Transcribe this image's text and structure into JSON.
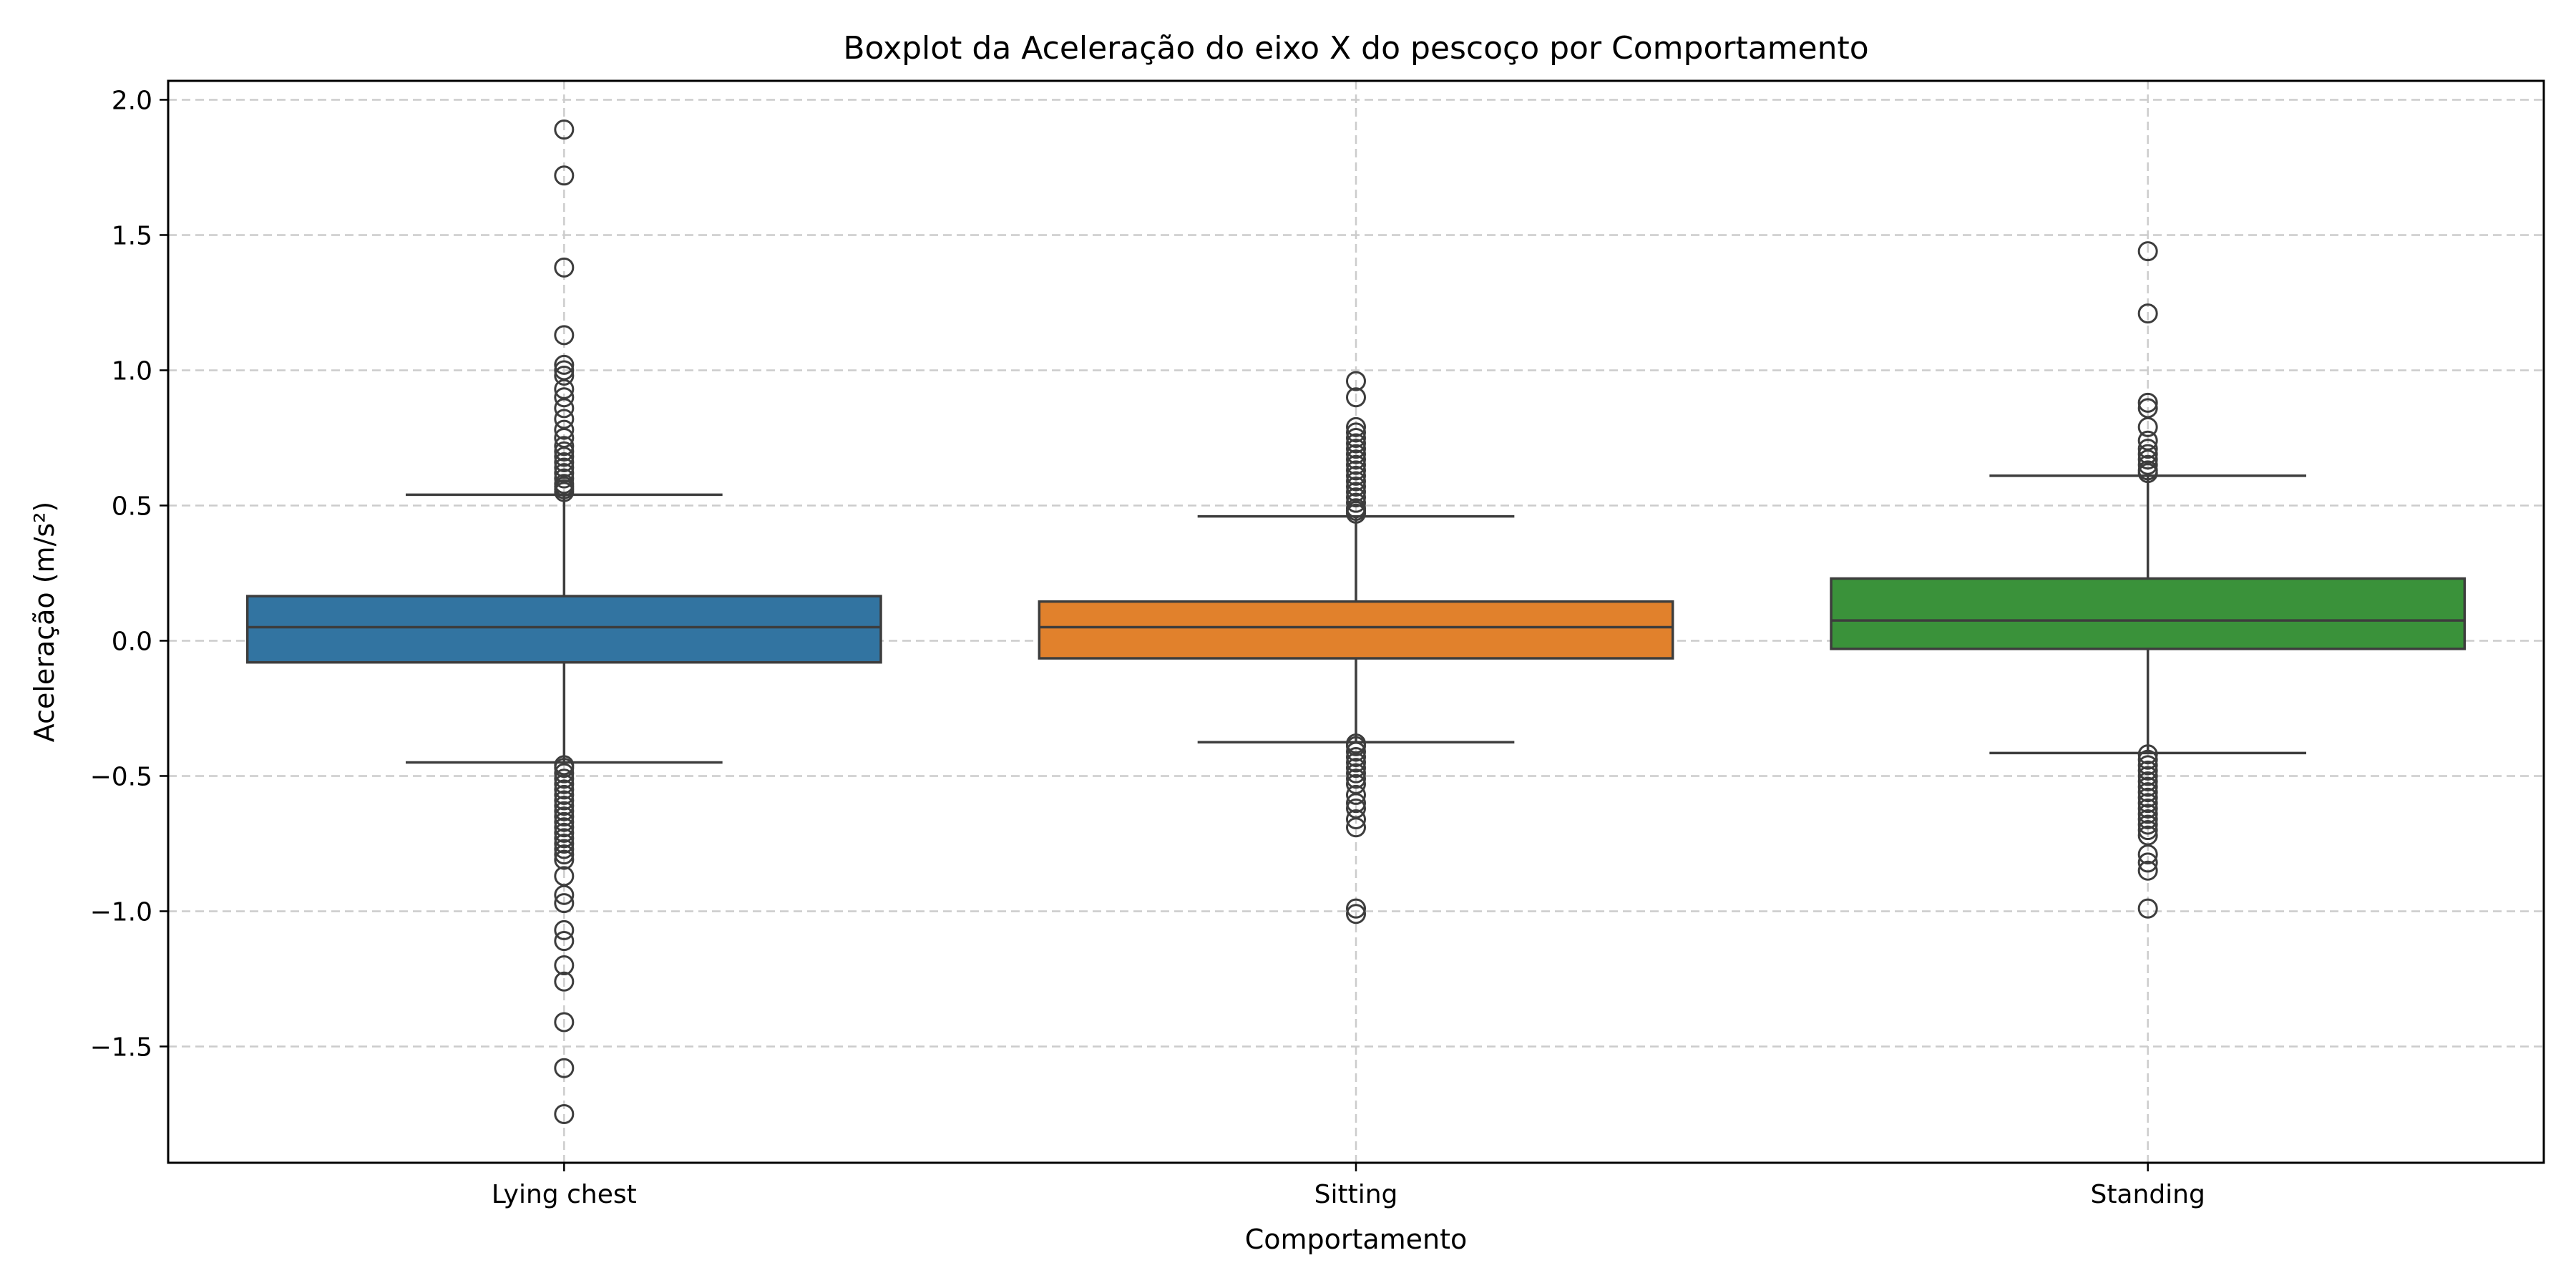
{
  "chart_data": {
    "type": "boxplot",
    "title": "Boxplot da Aceleração do eixo X do pescoço por Comportamento",
    "xlabel": "Comportamento",
    "ylabel": "Aceleração (m/s²)",
    "ylim": [
      -1.93,
      2.07
    ],
    "yticks": [
      -1.5,
      -1.0,
      -0.5,
      0.0,
      0.5,
      1.0,
      1.5,
      2.0
    ],
    "ytick_labels": [
      "−1.5",
      "−1.0",
      "−0.5",
      "0.0",
      "0.5",
      "1.0",
      "1.5",
      "2.0"
    ],
    "grid": true,
    "categories": [
      "Lying chest",
      "Sitting",
      "Standing"
    ],
    "series": [
      {
        "category": "Lying chest",
        "color": "#3274a1",
        "q1": -0.08,
        "median": 0.05,
        "q3": 0.165,
        "whisker_low": -0.45,
        "whisker_high": 0.54,
        "fliers": [
          1.89,
          1.72,
          1.38,
          1.13,
          1.02,
          1.0,
          0.98,
          0.93,
          0.9,
          0.86,
          0.82,
          0.78,
          0.75,
          0.72,
          0.7,
          0.68,
          0.66,
          0.64,
          0.62,
          0.6,
          0.58,
          0.57,
          0.56,
          0.55,
          -0.46,
          -0.47,
          -0.49,
          -0.51,
          -0.53,
          -0.55,
          -0.57,
          -0.59,
          -0.61,
          -0.63,
          -0.65,
          -0.67,
          -0.69,
          -0.71,
          -0.73,
          -0.75,
          -0.77,
          -0.79,
          -0.81,
          -0.87,
          -0.94,
          -0.97,
          -1.07,
          -1.11,
          -1.2,
          -1.26,
          -1.41,
          -1.58,
          -1.75
        ]
      },
      {
        "category": "Sitting",
        "color": "#e1812c",
        "q1": -0.065,
        "median": 0.05,
        "q3": 0.145,
        "whisker_low": -0.375,
        "whisker_high": 0.46,
        "fliers": [
          0.96,
          0.9,
          0.79,
          0.77,
          0.75,
          0.73,
          0.71,
          0.69,
          0.67,
          0.65,
          0.63,
          0.61,
          0.59,
          0.57,
          0.55,
          0.53,
          0.51,
          0.49,
          0.48,
          0.47,
          -0.38,
          -0.39,
          -0.41,
          -0.43,
          -0.45,
          -0.47,
          -0.49,
          -0.51,
          -0.53,
          -0.57,
          -0.6,
          -0.62,
          -0.66,
          -0.69,
          -0.99,
          -1.01
        ]
      },
      {
        "category": "Standing",
        "color": "#3a923a",
        "q1": -0.03,
        "median": 0.075,
        "q3": 0.23,
        "whisker_low": -0.415,
        "whisker_high": 0.61,
        "fliers": [
          1.44,
          1.21,
          0.88,
          0.86,
          0.79,
          0.74,
          0.71,
          0.69,
          0.67,
          0.65,
          0.63,
          0.62,
          -0.42,
          -0.44,
          -0.46,
          -0.48,
          -0.5,
          -0.52,
          -0.54,
          -0.56,
          -0.58,
          -0.6,
          -0.62,
          -0.64,
          -0.66,
          -0.68,
          -0.7,
          -0.72,
          -0.79,
          -0.82,
          -0.85,
          -0.99
        ]
      }
    ]
  }
}
